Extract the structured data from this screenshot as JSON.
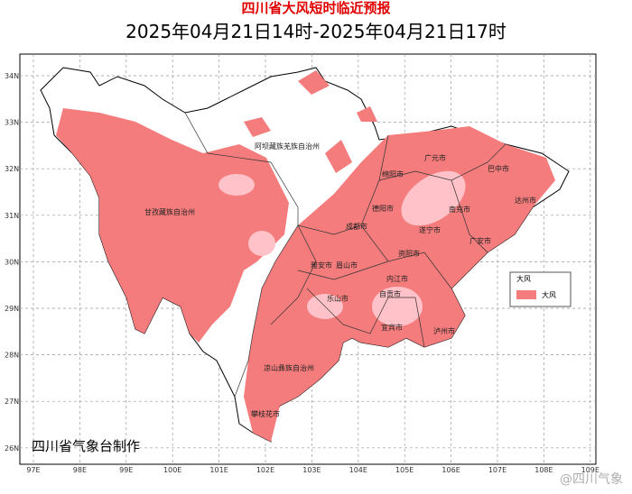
{
  "title": "四川省大风短时临近预报",
  "subtitle": "2025年04月21日14时-2025年04月21日17时",
  "lon_labels": [
    "97E",
    "98E",
    "99E",
    "100E",
    "101E",
    "102E",
    "103E",
    "104E",
    "105E",
    "106E",
    "107E",
    "108E",
    "109E"
  ],
  "lat_labels": [
    "34N",
    "33N",
    "32N",
    "31N",
    "30N",
    "29N",
    "28N",
    "27N",
    "26N"
  ],
  "regions": [
    "阿坝藏族羌族自治州",
    "甘孜藏族自治州",
    "广元市",
    "巴中市",
    "绵阳市",
    "达州市",
    "南充市",
    "德阳市",
    "成都市",
    "遂宁市",
    "广安市",
    "资阳市",
    "雅安市",
    "眉山市",
    "内江市",
    "乐山市",
    "自贡市",
    "泸州市",
    "宜宾市",
    "凉山彝族自治州",
    "攀枝花市"
  ],
  "legend": {
    "title": "大风",
    "items": [
      "大风"
    ]
  },
  "credit": "四川省气象台制作",
  "watermark": "@四川气象"
}
